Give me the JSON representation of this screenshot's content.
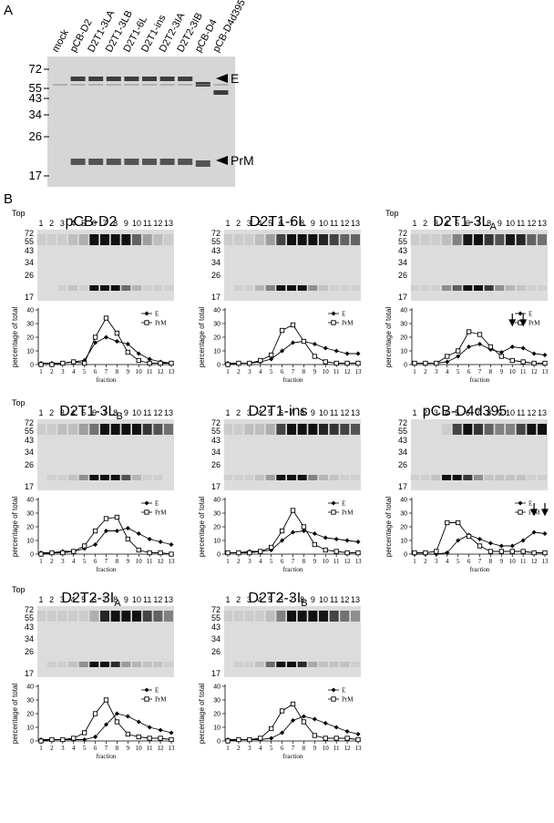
{
  "panel_a": {
    "label": "A",
    "lanes": [
      "mock",
      "pCB-D2",
      "D2T1-3LA",
      "D2T1-3LB",
      "D2T1-6L",
      "D2T1-ins",
      "D2T2-3IA",
      "D2T2-3IB",
      "pCB-D4",
      "pCB-D4d395"
    ],
    "mw": [
      72,
      55,
      43,
      34,
      26,
      17
    ],
    "bands": [
      "E",
      "PrM"
    ]
  },
  "panel_b_label": "B",
  "chart_data": [
    {
      "type": "line",
      "title": "pCB-D2",
      "gel_top": "Top",
      "gel_mw": [
        72,
        55,
        43,
        34,
        26,
        17
      ],
      "x": [
        1,
        2,
        3,
        4,
        5,
        6,
        7,
        8,
        9,
        10,
        11,
        12,
        13
      ],
      "xticks": [
        1,
        2,
        3,
        4,
        5,
        6,
        7,
        8,
        9,
        10,
        11,
        12,
        13
      ],
      "xlim": [
        1,
        13
      ],
      "ylim": [
        0,
        40
      ],
      "yticks": [
        0,
        10,
        20,
        30,
        40
      ],
      "xlabel": "fraction",
      "ylabel": "percentage of total",
      "series": [
        {
          "name": "E",
          "color": "#000000",
          "marker": "diamond",
          "values": [
            1,
            1,
            1,
            2,
            3,
            16,
            20,
            17,
            15,
            8,
            4,
            2,
            1
          ]
        },
        {
          "name": "PrM",
          "color": "#000000",
          "marker": "square",
          "values": [
            0,
            0,
            1,
            2,
            1,
            20,
            34,
            23,
            9,
            3,
            1,
            1,
            1
          ]
        }
      ]
    },
    {
      "type": "line",
      "title": "D2T1-6L",
      "gel_mw": [
        72,
        55,
        43,
        34,
        26,
        17
      ],
      "x": [
        1,
        2,
        3,
        4,
        5,
        6,
        7,
        8,
        9,
        10,
        11,
        12,
        13
      ],
      "xticks": [
        1,
        2,
        3,
        4,
        5,
        6,
        7,
        8,
        9,
        10,
        11,
        12,
        13
      ],
      "xlim": [
        1,
        13
      ],
      "ylim": [
        0,
        40
      ],
      "yticks": [
        0,
        10,
        20,
        30,
        40
      ],
      "xlabel": "fraction",
      "ylabel": "percentage of total",
      "series": [
        {
          "name": "E",
          "color": "#000000",
          "marker": "diamond",
          "values": [
            1,
            1,
            1,
            2,
            4,
            10,
            16,
            17,
            15,
            12,
            10,
            8,
            8
          ]
        },
        {
          "name": "PrM",
          "color": "#000000",
          "marker": "square",
          "values": [
            0,
            1,
            1,
            3,
            7,
            25,
            29,
            17,
            6,
            2,
            1,
            1,
            1
          ]
        }
      ]
    },
    {
      "type": "line",
      "title": "D2T1-3L",
      "title_sub": "A",
      "gel_top": "Top",
      "gel_mw": [
        72,
        55,
        43,
        34,
        26,
        17
      ],
      "x": [
        1,
        2,
        3,
        4,
        5,
        6,
        7,
        8,
        9,
        10,
        11,
        12,
        13
      ],
      "xticks": [
        1,
        2,
        3,
        4,
        5,
        6,
        7,
        8,
        9,
        10,
        11,
        12,
        13
      ],
      "xlim": [
        1,
        13
      ],
      "ylim": [
        0,
        40
      ],
      "yticks": [
        0,
        10,
        20,
        30,
        40
      ],
      "xlabel": "fraction",
      "ylabel": "percentage of total",
      "arrows_at": [
        10,
        11
      ],
      "series": [
        {
          "name": "E",
          "color": "#000000",
          "marker": "diamond",
          "values": [
            1,
            1,
            1,
            2,
            6,
            13,
            15,
            11,
            9,
            13,
            12,
            8,
            7
          ]
        },
        {
          "name": "PrM",
          "color": "#000000",
          "marker": "square",
          "values": [
            1,
            1,
            1,
            6,
            10,
            24,
            22,
            13,
            6,
            3,
            2,
            1,
            1
          ]
        }
      ]
    },
    {
      "type": "line",
      "title": "D2T1-3L",
      "title_sub": "B",
      "gel_top": "Top",
      "gel_mw": [
        72,
        55,
        43,
        34,
        26,
        17
      ],
      "x": [
        1,
        2,
        3,
        4,
        5,
        6,
        7,
        8,
        9,
        10,
        11,
        12,
        13
      ],
      "xticks": [
        1,
        2,
        3,
        4,
        5,
        6,
        7,
        8,
        9,
        10,
        11,
        12,
        13
      ],
      "xlim": [
        1,
        13
      ],
      "ylim": [
        0,
        40
      ],
      "yticks": [
        0,
        10,
        20,
        30,
        40
      ],
      "xlabel": "fraction",
      "ylabel": "percentage of total",
      "series": [
        {
          "name": "E",
          "color": "#000000",
          "marker": "diamond",
          "values": [
            1,
            1,
            2,
            2,
            4,
            7,
            17,
            17,
            19,
            15,
            11,
            9,
            7
          ]
        },
        {
          "name": "PrM",
          "color": "#000000",
          "marker": "square",
          "values": [
            0,
            1,
            1,
            2,
            6,
            17,
            26,
            27,
            11,
            3,
            1,
            1,
            0
          ]
        }
      ]
    },
    {
      "type": "line",
      "title": "D2T1-ins",
      "gel_mw": [
        72,
        55,
        43,
        34,
        26,
        17
      ],
      "x": [
        1,
        2,
        3,
        4,
        5,
        6,
        7,
        8,
        9,
        10,
        11,
        12,
        13
      ],
      "xticks": [
        1,
        2,
        3,
        4,
        5,
        6,
        7,
        8,
        9,
        10,
        11,
        12,
        13
      ],
      "xlim": [
        1,
        13
      ],
      "ylim": [
        0,
        40
      ],
      "yticks": [
        0,
        10,
        20,
        30,
        40
      ],
      "xlabel": "fraction",
      "ylabel": "percentage of total",
      "series": [
        {
          "name": "E",
          "color": "#000000",
          "marker": "diamond",
          "values": [
            1,
            1,
            2,
            2,
            3,
            10,
            16,
            17,
            15,
            12,
            11,
            10,
            9
          ]
        },
        {
          "name": "PrM",
          "color": "#000000",
          "marker": "square",
          "values": [
            1,
            1,
            1,
            2,
            5,
            17,
            32,
            20,
            7,
            3,
            2,
            1,
            1
          ]
        }
      ]
    },
    {
      "type": "line",
      "title": "pCB-D4d395",
      "gel_mw": [
        72,
        55,
        43,
        34,
        26,
        17
      ],
      "x": [
        1,
        2,
        3,
        4,
        5,
        6,
        7,
        8,
        9,
        10,
        11,
        12,
        13
      ],
      "xticks": [
        1,
        2,
        3,
        4,
        5,
        6,
        7,
        8,
        9,
        10,
        11,
        12,
        13
      ],
      "xlim": [
        1,
        13
      ],
      "ylim": [
        0,
        40
      ],
      "yticks": [
        0,
        10,
        20,
        30,
        40
      ],
      "xlabel": "fraction",
      "ylabel": "percentage of total",
      "arrows_at": [
        12,
        13
      ],
      "series": [
        {
          "name": "E",
          "color": "#000000",
          "marker": "diamond",
          "values": [
            0,
            0,
            0,
            1,
            10,
            14,
            11,
            8,
            6,
            6,
            10,
            16,
            15
          ]
        },
        {
          "name": "PrM",
          "color": "#000000",
          "marker": "square",
          "values": [
            1,
            1,
            2,
            23,
            23,
            13,
            6,
            2,
            2,
            2,
            2,
            1,
            1
          ]
        }
      ]
    },
    {
      "type": "line",
      "title": "D2T2-3I",
      "title_sub": "A",
      "gel_top": "Top",
      "gel_mw": [
        72,
        55,
        43,
        34,
        26,
        17
      ],
      "x": [
        1,
        2,
        3,
        4,
        5,
        6,
        7,
        8,
        9,
        10,
        11,
        12,
        13
      ],
      "xticks": [
        1,
        2,
        3,
        4,
        5,
        6,
        7,
        8,
        9,
        10,
        11,
        12,
        13
      ],
      "xlim": [
        1,
        13
      ],
      "ylim": [
        0,
        40
      ],
      "yticks": [
        0,
        10,
        20,
        30,
        40
      ],
      "xlabel": "fraction",
      "ylabel": "percentage of total",
      "series": [
        {
          "name": "E",
          "color": "#000000",
          "marker": "diamond",
          "values": [
            1,
            1,
            1,
            1,
            1,
            3,
            12,
            20,
            18,
            14,
            10,
            8,
            6
          ]
        },
        {
          "name": "PrM",
          "color": "#000000",
          "marker": "square",
          "values": [
            0,
            1,
            1,
            2,
            6,
            20,
            30,
            14,
            5,
            3,
            2,
            2,
            1
          ]
        }
      ]
    },
    {
      "type": "line",
      "title": "D2T2-3I",
      "title_sub": "B",
      "gel_mw": [
        72,
        55,
        43,
        34,
        26,
        17
      ],
      "x": [
        1,
        2,
        3,
        4,
        5,
        6,
        7,
        8,
        9,
        10,
        11,
        12,
        13
      ],
      "xticks": [
        1,
        2,
        3,
        4,
        5,
        6,
        7,
        8,
        9,
        10,
        11,
        12,
        13
      ],
      "xlim": [
        1,
        13
      ],
      "ylim": [
        0,
        40
      ],
      "yticks": [
        0,
        10,
        20,
        30,
        40
      ],
      "xlabel": "fraction",
      "ylabel": "percentage of total",
      "series": [
        {
          "name": "E",
          "color": "#000000",
          "marker": "diamond",
          "values": [
            1,
            1,
            1,
            1,
            2,
            6,
            15,
            18,
            16,
            13,
            10,
            7,
            5
          ]
        },
        {
          "name": "PrM",
          "color": "#000000",
          "marker": "square",
          "values": [
            0,
            1,
            1,
            2,
            9,
            22,
            27,
            14,
            4,
            2,
            2,
            2,
            1
          ]
        }
      ]
    }
  ]
}
